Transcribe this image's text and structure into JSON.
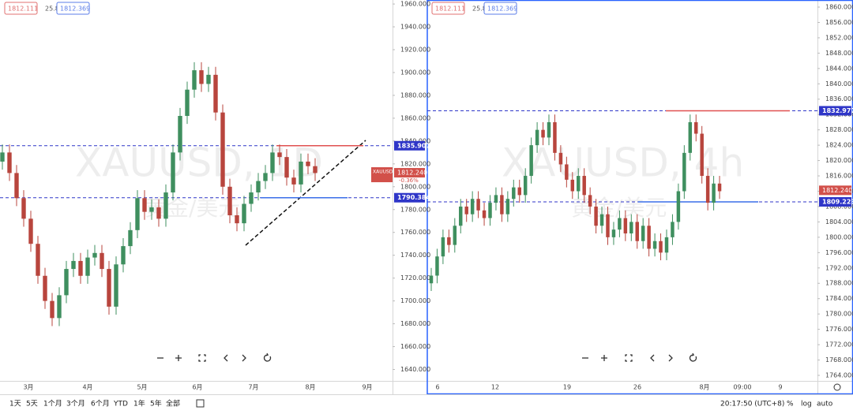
{
  "chart_data": [
    {
      "type": "candlestick",
      "watermark": "XAUUSD, 1D",
      "watermark_sub": "黄金/美元",
      "legend": [
        "1812.111",
        "25.8",
        "1812.369"
      ],
      "up_color": "#3f8f5f",
      "down_color": "#b8453d",
      "ylim": [
        1630,
        1963.5
      ],
      "yticks": [
        {
          "value": 1640,
          "label": "1640.000"
        },
        {
          "value": 1660,
          "label": "1660.000"
        },
        {
          "value": 1680,
          "label": "1680.000"
        },
        {
          "value": 1700,
          "label": "1700.000"
        },
        {
          "value": 1720,
          "label": "1720.000"
        },
        {
          "value": 1740,
          "label": "1740.000"
        },
        {
          "value": 1760,
          "label": "1760.000"
        },
        {
          "value": 1780,
          "label": "1780.000"
        },
        {
          "value": 1800,
          "label": "1800.000"
        },
        {
          "value": 1820,
          "label": "1820.000"
        },
        {
          "value": 1840,
          "label": "1840.000"
        },
        {
          "value": 1860,
          "label": "1860.000"
        },
        {
          "value": 1880,
          "label": "1880.000"
        },
        {
          "value": 1900,
          "label": "1900.000"
        },
        {
          "value": 1920,
          "label": "1920.000"
        },
        {
          "value": 1940,
          "label": "1940.000"
        },
        {
          "value": 1960,
          "label": "1960.000"
        }
      ],
      "xtick_labels": [
        "3月",
        "4月",
        "5月",
        "6月",
        "7月",
        "8月",
        "9月"
      ],
      "open": [
        1822,
        1830,
        1812,
        1790,
        1772,
        1750,
        1722,
        1700,
        1685,
        1705,
        1728,
        1735,
        1722,
        1738,
        1742,
        1728,
        1695,
        1732,
        1748,
        1762,
        1790,
        1778,
        1782,
        1772,
        1795,
        1830,
        1862,
        1885,
        1902,
        1890,
        1898,
        1865,
        1800,
        1775,
        1768,
        1785,
        1795,
        1805,
        1812,
        1830,
        1826,
        1808,
        1802,
        1822,
        1818
      ],
      "high": [
        1837,
        1837,
        1819,
        1797,
        1779,
        1757,
        1729,
        1707,
        1712,
        1735,
        1742,
        1742,
        1745,
        1749,
        1749,
        1735,
        1739,
        1755,
        1769,
        1797,
        1797,
        1789,
        1789,
        1802,
        1837,
        1869,
        1892,
        1909,
        1909,
        1905,
        1905,
        1872,
        1807,
        1782,
        1792,
        1802,
        1812,
        1819,
        1837,
        1837,
        1833,
        1815,
        1829,
        1829,
        1825
      ],
      "low": [
        1815,
        1805,
        1783,
        1765,
        1743,
        1715,
        1693,
        1678,
        1678,
        1698,
        1721,
        1715,
        1715,
        1731,
        1721,
        1688,
        1688,
        1725,
        1741,
        1755,
        1771,
        1771,
        1765,
        1765,
        1788,
        1823,
        1855,
        1878,
        1883,
        1883,
        1858,
        1793,
        1768,
        1761,
        1761,
        1778,
        1788,
        1798,
        1805,
        1819,
        1801,
        1795,
        1795,
        1811,
        1805
      ],
      "close": [
        1830,
        1812,
        1790,
        1772,
        1750,
        1722,
        1700,
        1685,
        1705,
        1728,
        1735,
        1722,
        1738,
        1742,
        1728,
        1695,
        1732,
        1748,
        1762,
        1790,
        1778,
        1782,
        1772,
        1795,
        1830,
        1862,
        1885,
        1902,
        1890,
        1898,
        1865,
        1800,
        1775,
        1768,
        1785,
        1795,
        1805,
        1812,
        1830,
        1826,
        1808,
        1802,
        1822,
        1818,
        1812
      ],
      "price_lines": [
        {
          "value": 1835.907,
          "color": "#2f36c8"
        },
        {
          "value": 1790.384,
          "color": "#2f36c8"
        }
      ],
      "last_price": {
        "value": 1812.24,
        "label": "1812.240"
      },
      "symbol": "XAUUSD",
      "change_label": "-0.36%"
    },
    {
      "type": "candlestick",
      "watermark": "XAUUSD, 4h",
      "watermark_sub": "黄金/美元",
      "legend": [
        "1812.111",
        "25.8",
        "1812.369"
      ],
      "up_color": "#3f8f5f",
      "down_color": "#b8453d",
      "ylim": [
        1762.56,
        1861.85
      ],
      "yticks": [
        {
          "value": 1764,
          "label": "1764.000"
        },
        {
          "value": 1768,
          "label": "1768.000"
        },
        {
          "value": 1772,
          "label": "1772.000"
        },
        {
          "value": 1776,
          "label": "1776.000"
        },
        {
          "value": 1780,
          "label": "1780.000"
        },
        {
          "value": 1784,
          "label": "1784.000"
        },
        {
          "value": 1788,
          "label": "1788.000"
        },
        {
          "value": 1792,
          "label": "1792.000"
        },
        {
          "value": 1796,
          "label": "1796.000"
        },
        {
          "value": 1800,
          "label": "1800.000"
        },
        {
          "value": 1804,
          "label": "1804.000"
        },
        {
          "value": 1808,
          "label": "1808.000"
        },
        {
          "value": 1812,
          "label": "1812.000"
        },
        {
          "value": 1816,
          "label": "1816.000"
        },
        {
          "value": 1820,
          "label": "1820.000"
        },
        {
          "value": 1824,
          "label": "1824.000"
        },
        {
          "value": 1828,
          "label": "1828.000"
        },
        {
          "value": 1832,
          "label": "1832.000"
        },
        {
          "value": 1836,
          "label": "1836.000"
        },
        {
          "value": 1840,
          "label": "1840.000"
        },
        {
          "value": 1844,
          "label": "1844.000"
        },
        {
          "value": 1848,
          "label": "1848.000"
        },
        {
          "value": 1852,
          "label": "1852.000"
        },
        {
          "value": 1856,
          "label": "1856.000"
        },
        {
          "value": 1860,
          "label": "1860.000"
        }
      ],
      "xtick_labels": [
        "6",
        "12",
        "19",
        "26",
        "8月",
        "09:00",
        "9"
      ],
      "open": [
        1788,
        1790,
        1795,
        1800,
        1798,
        1803,
        1808,
        1806,
        1810,
        1807,
        1805,
        1809,
        1811,
        1806,
        1810,
        1813,
        1811,
        1816,
        1824,
        1828,
        1826,
        1830,
        1822,
        1819,
        1815,
        1812,
        1816,
        1811,
        1808,
        1803,
        1806,
        1800,
        1802,
        1805,
        1801,
        1804,
        1799,
        1803,
        1797,
        1799,
        1796,
        1800,
        1804,
        1812,
        1822,
        1830,
        1827,
        1816,
        1809,
        1814
      ],
      "high": [
        1792,
        1797,
        1802,
        1802,
        1805,
        1810,
        1810,
        1812,
        1812,
        1809,
        1811,
        1813,
        1813,
        1812,
        1815,
        1815,
        1818,
        1826,
        1830,
        1830,
        1832,
        1832,
        1824,
        1821,
        1817,
        1818,
        1818,
        1813,
        1810,
        1808,
        1808,
        1804,
        1807,
        1807,
        1806,
        1806,
        1805,
        1805,
        1801,
        1801,
        1802,
        1806,
        1814,
        1824,
        1832,
        1832,
        1829,
        1818,
        1816,
        1816
      ],
      "low": [
        1786,
        1788,
        1793,
        1796,
        1796,
        1801,
        1804,
        1804,
        1805,
        1803,
        1803,
        1807,
        1804,
        1804,
        1808,
        1809,
        1809,
        1814,
        1822,
        1824,
        1824,
        1820,
        1817,
        1813,
        1810,
        1810,
        1809,
        1806,
        1801,
        1801,
        1798,
        1798,
        1800,
        1799,
        1799,
        1797,
        1797,
        1795,
        1795,
        1794,
        1794,
        1798,
        1802,
        1810,
        1820,
        1825,
        1814,
        1807,
        1807,
        1810
      ],
      "close": [
        1790,
        1795,
        1800,
        1798,
        1803,
        1808,
        1806,
        1810,
        1807,
        1805,
        1809,
        1811,
        1806,
        1810,
        1813,
        1811,
        1816,
        1824,
        1828,
        1826,
        1830,
        1822,
        1819,
        1815,
        1812,
        1816,
        1811,
        1808,
        1803,
        1806,
        1800,
        1802,
        1805,
        1801,
        1804,
        1799,
        1803,
        1797,
        1799,
        1796,
        1800,
        1804,
        1812,
        1822,
        1830,
        1827,
        1816,
        1809,
        1814,
        1812
      ],
      "price_lines": [
        {
          "value": 1832.977,
          "color": "#2f36c8"
        },
        {
          "value": 1809.223,
          "color": "#2f36c8"
        }
      ],
      "last_price": {
        "value": 1812.24,
        "label": "1812.240"
      }
    }
  ],
  "toolbar": {
    "ranges": [
      "1天",
      "5天",
      "1个月",
      "3个月",
      "6个月",
      "YTD",
      "1年",
      "5年",
      "全部"
    ],
    "clock": "20:17:50 (UTC+8)",
    "options": [
      "%",
      "log",
      "auto"
    ]
  }
}
